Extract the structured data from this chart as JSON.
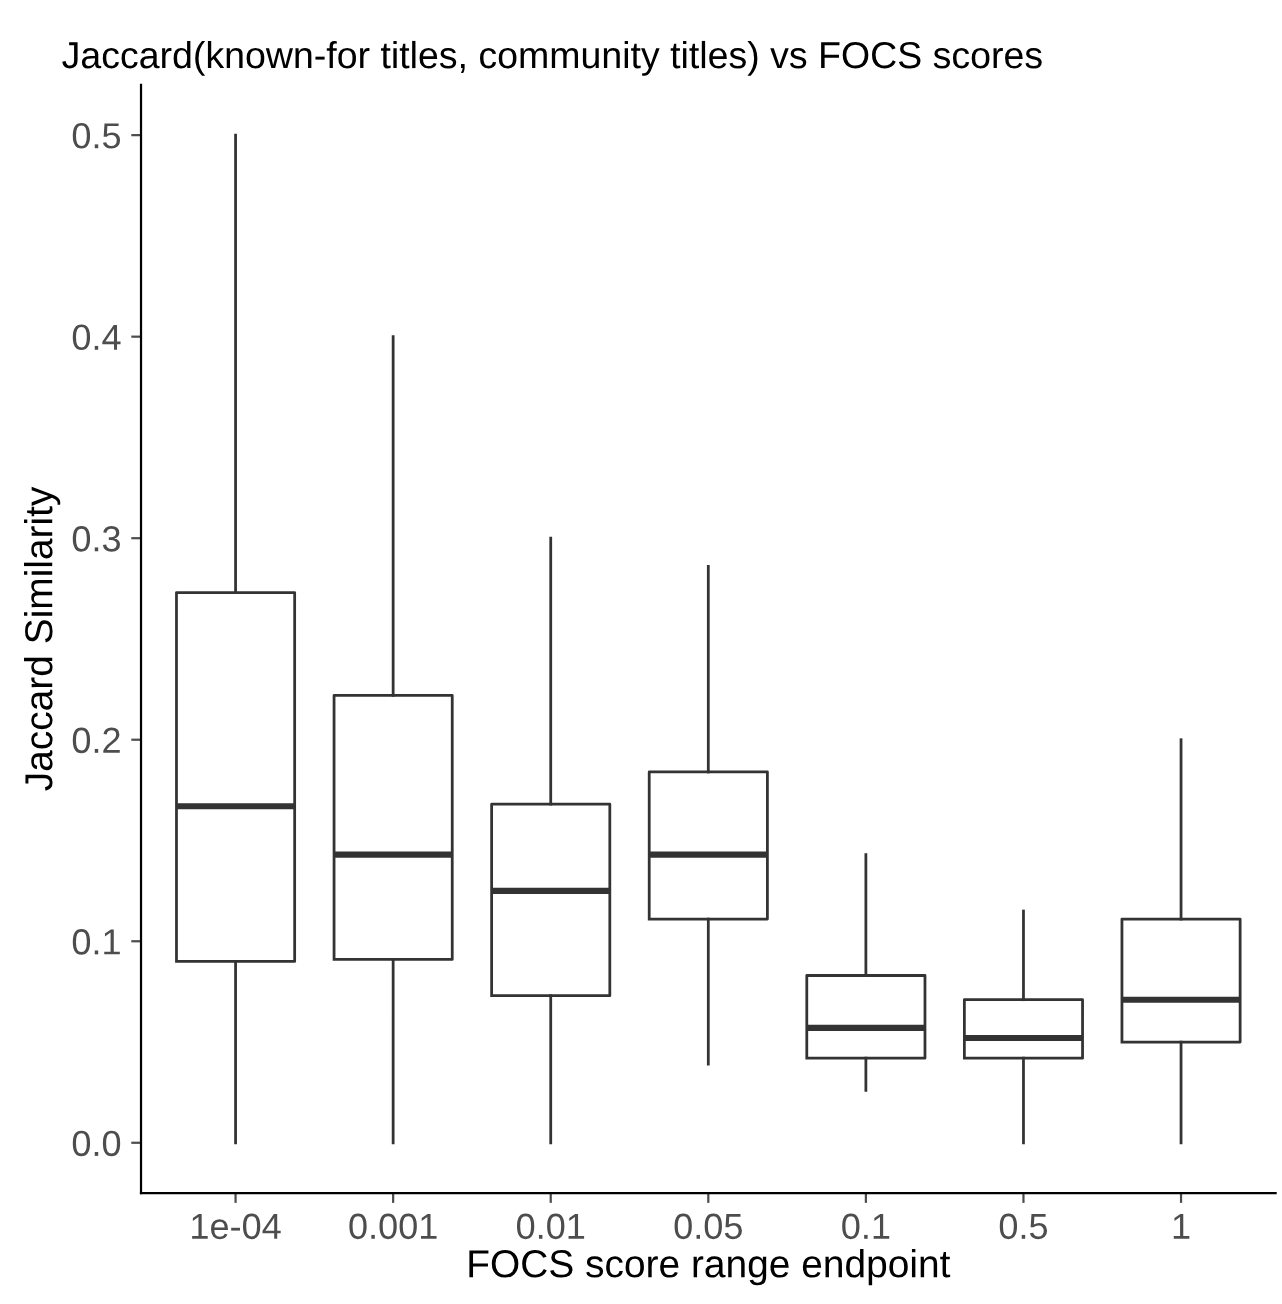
{
  "chart_data": {
    "type": "box",
    "title": "Jaccard(known-for titles, community titles) vs FOCS scores",
    "xlabel": "FOCS score range endpoint",
    "ylabel": "Jaccard Similarity",
    "categories": [
      "1e-04",
      "0.001",
      "0.01",
      "0.05",
      "0.1",
      "0.5",
      "1"
    ],
    "boxes": [
      {
        "low": 0.0,
        "q1": 0.09,
        "median": 0.167,
        "q3": 0.273,
        "high": 0.5
      },
      {
        "low": 0.0,
        "q1": 0.091,
        "median": 0.143,
        "q3": 0.222,
        "high": 0.4
      },
      {
        "low": 0.0,
        "q1": 0.073,
        "median": 0.125,
        "q3": 0.168,
        "high": 0.3
      },
      {
        "low": 0.039,
        "q1": 0.111,
        "median": 0.143,
        "q3": 0.184,
        "high": 0.286
      },
      {
        "low": 0.026,
        "q1": 0.042,
        "median": 0.057,
        "q3": 0.083,
        "high": 0.143
      },
      {
        "low": 0.0,
        "q1": 0.042,
        "median": 0.052,
        "q3": 0.071,
        "high": 0.115
      },
      {
        "low": 0.0,
        "q1": 0.05,
        "median": 0.071,
        "q3": 0.111,
        "high": 0.2
      }
    ],
    "ylim": [
      -0.025,
      0.525
    ],
    "yticks": [
      {
        "value": 0,
        "label": "0.0"
      },
      0.1,
      0.2,
      0.3,
      0.4,
      0.5
    ],
    "grid": false,
    "legend": false
  }
}
